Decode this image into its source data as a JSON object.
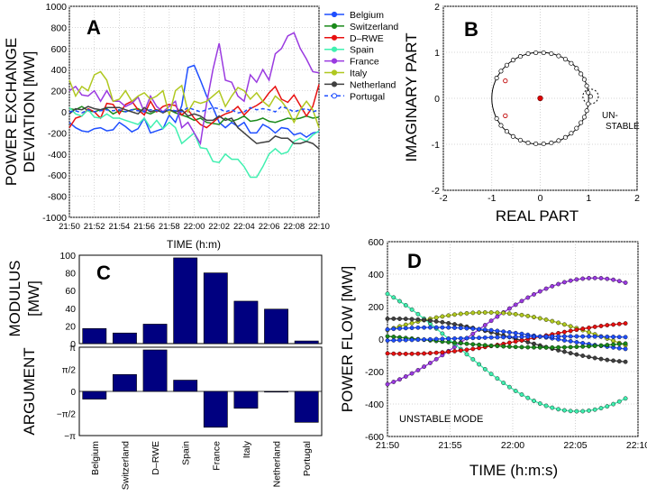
{
  "figure": "Power exchange deviation analysis",
  "chart_data": [
    {
      "id": "A",
      "panel_label": "A",
      "type": "line",
      "title": "",
      "xlabel": "TIME (h:m)",
      "ylabel": [
        "POWER EXCHANGE",
        "DEVIATION [MW]"
      ],
      "ylim": [
        -1000,
        1000
      ],
      "yticks": [
        -1000,
        -800,
        -600,
        -400,
        -200,
        0,
        200,
        400,
        600,
        800,
        1000
      ],
      "xticks": [
        "21:50",
        "21:52",
        "21:54",
        "21:56",
        "21:58",
        "22:00",
        "22:02",
        "22:04",
        "22:06",
        "22:08",
        "22:10"
      ],
      "grid": true,
      "legend_position": "outside-right",
      "legend": [
        "Belgium",
        "Switzerland",
        "D–RWE",
        "Spain",
        "France",
        "Italy",
        "Netherland",
        "Portugal"
      ],
      "series": [
        {
          "name": "Belgium",
          "color": "#1f4fff",
          "dash": false,
          "values": [
            -100,
            -150,
            -180,
            -190,
            -160,
            -150,
            -180,
            -170,
            -100,
            -140,
            -190,
            -160,
            -60,
            -200,
            -180,
            -160,
            -30,
            -100,
            60,
            420,
            440,
            300,
            150,
            40,
            -100,
            -150,
            -100,
            -140,
            -100,
            -200,
            -200,
            -120,
            -150,
            -200,
            -150,
            -160,
            -220,
            -200,
            -240,
            -200,
            -190
          ]
        },
        {
          "name": "Switzerland",
          "color": "#1a8a1a",
          "dash": false,
          "values": [
            30,
            20,
            50,
            10,
            0,
            20,
            30,
            -20,
            10,
            0,
            20,
            30,
            0,
            -20,
            10,
            0,
            20,
            -10,
            -30,
            -50,
            -80,
            -60,
            -100,
            -110,
            -120,
            -60,
            -90,
            -70,
            -40,
            -90,
            -80,
            -60,
            -90,
            -100,
            -80,
            -60,
            -70,
            -60,
            -40,
            -60,
            -50
          ]
        },
        {
          "name": "D–RWE",
          "color": "#e81010",
          "dash": false,
          "values": [
            -150,
            -60,
            -40,
            30,
            0,
            -60,
            80,
            70,
            -20,
            70,
            100,
            20,
            -30,
            100,
            0,
            50,
            70,
            60,
            -30,
            20,
            -60,
            -120,
            -150,
            -100,
            -50,
            -20,
            0,
            50,
            -30,
            30,
            60,
            100,
            180,
            240,
            120,
            90,
            160,
            60,
            -40,
            50,
            260
          ]
        },
        {
          "name": "Spain",
          "color": "#40f0b0",
          "dash": false,
          "values": [
            40,
            -20,
            -40,
            20,
            -50,
            -60,
            -20,
            -60,
            -60,
            -80,
            -100,
            -120,
            -60,
            -150,
            -80,
            -160,
            -100,
            -150,
            -300,
            -250,
            -200,
            -340,
            -350,
            -470,
            -480,
            -400,
            -450,
            -450,
            -520,
            -620,
            -620,
            -520,
            -400,
            -350,
            -400,
            -380,
            -280,
            -250,
            -280,
            -220,
            -180
          ]
        },
        {
          "name": "France",
          "color": "#9a3ae0",
          "dash": false,
          "values": [
            200,
            240,
            160,
            150,
            200,
            100,
            200,
            100,
            100,
            50,
            80,
            140,
            0,
            150,
            50,
            0,
            50,
            100,
            -150,
            -100,
            -200,
            -300,
            80,
            400,
            650,
            300,
            280,
            150,
            100,
            350,
            280,
            400,
            300,
            550,
            600,
            720,
            750,
            600,
            500,
            380,
            370
          ]
        },
        {
          "name": "Italy",
          "color": "#b0c820",
          "dash": false,
          "values": [
            300,
            150,
            240,
            200,
            350,
            380,
            300,
            100,
            120,
            200,
            100,
            150,
            180,
            120,
            150,
            200,
            -30,
            200,
            250,
            0,
            100,
            80,
            100,
            150,
            200,
            50,
            150,
            230,
            200,
            120,
            180,
            100,
            50,
            150,
            100,
            20,
            -100,
            20,
            100,
            20,
            -150
          ]
        },
        {
          "name": "Netherland",
          "color": "#404040",
          "dash": false,
          "values": [
            -20,
            30,
            20,
            50,
            30,
            20,
            40,
            40,
            40,
            20,
            0,
            -20,
            40,
            0,
            20,
            -10,
            20,
            0,
            20,
            -40,
            -20,
            -40,
            -80,
            -80,
            -40,
            -80,
            -60,
            -150,
            -200,
            -250,
            -300,
            -290,
            -280,
            -230,
            -250,
            -250,
            -300,
            -300,
            -280,
            -300,
            -350
          ]
        },
        {
          "name": "Portugal",
          "color": "#1f4fff",
          "dash": true,
          "values": [
            0,
            10,
            -10,
            20,
            0,
            10,
            20,
            10,
            20,
            0,
            20,
            10,
            0,
            20,
            10,
            0,
            20,
            10,
            0,
            40,
            20,
            0,
            20,
            40,
            30,
            0,
            20,
            -10,
            0,
            40,
            20,
            30,
            20,
            0,
            50,
            30,
            0,
            20,
            30,
            0,
            20
          ]
        }
      ]
    },
    {
      "id": "B",
      "panel_label": "B",
      "type": "scatter",
      "xlabel": "REAL PART",
      "ylabel": "IMAGINARY PART",
      "xlim": [
        -2,
        2
      ],
      "ylim": [
        -2,
        2
      ],
      "xticks": [
        -2,
        -1,
        0,
        1,
        2
      ],
      "yticks": [
        -2,
        -1,
        0,
        1,
        2
      ],
      "grid": true,
      "annotation": [
        "UN-",
        "STABLE"
      ],
      "unit_circle_radius": 1,
      "unstable_circle": {
        "center": [
          1.04,
          0.04
        ],
        "radius": 0.16
      },
      "eigenvalues": [
        [
          -0.9,
          0.44
        ],
        [
          -0.81,
          0.59
        ],
        [
          -0.69,
          0.72
        ],
        [
          -0.56,
          0.83
        ],
        [
          -0.41,
          0.91
        ],
        [
          -0.25,
          0.97
        ],
        [
          -0.09,
          0.99
        ],
        [
          0.07,
          0.99
        ],
        [
          0.23,
          0.97
        ],
        [
          0.38,
          0.92
        ],
        [
          0.52,
          0.85
        ],
        [
          0.64,
          0.76
        ],
        [
          0.75,
          0.65
        ],
        [
          0.84,
          0.53
        ],
        [
          0.91,
          0.41
        ],
        [
          0.96,
          0.27
        ],
        [
          0.99,
          0.12
        ],
        [
          -0.9,
          -0.44
        ],
        [
          -0.81,
          -0.59
        ],
        [
          -0.69,
          -0.72
        ],
        [
          -0.56,
          -0.83
        ],
        [
          -0.41,
          -0.91
        ],
        [
          -0.25,
          -0.97
        ],
        [
          -0.09,
          -0.99
        ],
        [
          0.07,
          -0.99
        ],
        [
          0.23,
          -0.97
        ],
        [
          0.38,
          -0.92
        ],
        [
          0.52,
          -0.85
        ],
        [
          0.64,
          -0.76
        ],
        [
          0.75,
          -0.65
        ],
        [
          0.84,
          -0.53
        ],
        [
          0.91,
          -0.41
        ],
        [
          0.96,
          -0.27
        ],
        [
          0.99,
          -0.12
        ],
        [
          1.04,
          0.04
        ]
      ],
      "highlighted": [
        [
          -0.72,
          0.38
        ],
        [
          -0.72,
          -0.38
        ]
      ],
      "center_point": [
        0,
        0
      ]
    },
    {
      "id": "C",
      "panel_label": "C",
      "type": "bar",
      "categories": [
        "Belgium",
        "Switzerland",
        "D–RWE",
        "Spain",
        "France",
        "Italy",
        "Netherland",
        "Portugal"
      ],
      "modulus": {
        "ylabel": [
          "MODULUS",
          "[MW]"
        ],
        "ylim": [
          0,
          100
        ],
        "yticks": [
          0,
          20,
          40,
          60,
          80,
          100
        ],
        "values": [
          17,
          12,
          22,
          97,
          80,
          48,
          39,
          3
        ]
      },
      "argument": {
        "ylabel": "ARGUMENT",
        "ylim": [
          -3.1416,
          3.1416
        ],
        "ytick_labels": [
          "−π",
          "−π/2",
          "0",
          "π/2",
          "π"
        ],
        "values": [
          -0.55,
          1.2,
          2.95,
          0.8,
          -2.55,
          -1.2,
          -0.05,
          -2.2
        ]
      },
      "bar_color": "#000080"
    },
    {
      "id": "D",
      "panel_label": "D",
      "type": "line",
      "xlabel": "TIME (h:m:s)",
      "ylabel": "POWER FLOW [MW]",
      "ylim": [
        -600,
        600
      ],
      "yticks": [
        -600,
        -400,
        -200,
        0,
        200,
        400,
        600
      ],
      "xticks": [
        "21:50",
        "21:55",
        "22:00",
        "22:05",
        "22:10"
      ],
      "grid": true,
      "annotation": "UNSTABLE MODE",
      "t_points_minutes": [
        0,
        19
      ],
      "series": [
        {
          "name": "France",
          "color": "#9a3ae0",
          "amplitude": 670,
          "phase": -2.55,
          "offset": 0
        },
        {
          "name": "Spain",
          "color": "#40f0b0",
          "amplitude": 800,
          "phase": 0.8,
          "offset": 0
        },
        {
          "name": "Italy",
          "color": "#b0c820",
          "amplitude": 310,
          "phase": -1.2,
          "offset": 0
        },
        {
          "name": "Netherland",
          "color": "#404040",
          "amplitude": 250,
          "phase": -0.05,
          "offset": 0
        },
        {
          "name": "D–RWE",
          "color": "#e81010",
          "amplitude": 180,
          "phase": 2.95,
          "offset": 0
        },
        {
          "name": "Belgium",
          "color": "#1f4fff",
          "amplitude": 140,
          "phase": -0.55,
          "offset": 0
        },
        {
          "name": "Switzerland",
          "color": "#1a8a1a",
          "amplitude": 95,
          "phase": 1.2,
          "offset": 0
        },
        {
          "name": "Portugal",
          "color": "#1f4fff",
          "amplitude": 30,
          "phase": -2.2,
          "offset": 0
        }
      ]
    }
  ]
}
